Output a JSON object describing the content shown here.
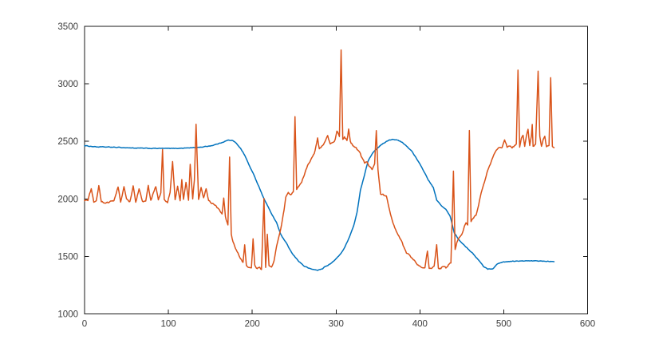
{
  "figure": {
    "background": "#ffffff"
  },
  "chart_data": {
    "type": "line",
    "title": "",
    "xlabel": "",
    "ylabel": "",
    "xlim": [
      0,
      600
    ],
    "ylim": [
      1000,
      3500
    ],
    "x_ticks": [
      "0",
      "100",
      "200",
      "300",
      "400",
      "500",
      "600"
    ],
    "x_tick_values": [
      0,
      100,
      200,
      300,
      400,
      500,
      600
    ],
    "y_ticks": [
      "1000",
      "1500",
      "2000",
      "2500",
      "3000",
      "3500"
    ],
    "y_tick_values": [
      1000,
      1500,
      2000,
      2500,
      3000,
      3500
    ],
    "grid": false,
    "box": true,
    "legend": "none",
    "axis_color": "#1a1a1a",
    "tick_label_color": "#3c3c3c",
    "series": [
      {
        "name": "blue-signal",
        "color": "#0072BD",
        "line_width": 1.5,
        "noise": 3,
        "points": [
          [
            0,
            2462
          ],
          [
            15,
            2452
          ],
          [
            30,
            2450
          ],
          [
            45,
            2446
          ],
          [
            60,
            2442
          ],
          [
            75,
            2439
          ],
          [
            90,
            2439
          ],
          [
            105,
            2438
          ],
          [
            120,
            2442
          ],
          [
            132,
            2446
          ],
          [
            142,
            2452
          ],
          [
            152,
            2464
          ],
          [
            160,
            2480
          ],
          [
            166,
            2497
          ],
          [
            171,
            2510
          ],
          [
            176,
            2508
          ],
          [
            181,
            2485
          ],
          [
            186,
            2440
          ],
          [
            191,
            2380
          ],
          [
            196,
            2298
          ],
          [
            201,
            2222
          ],
          [
            206,
            2140
          ],
          [
            210,
            2072
          ],
          [
            214,
            2000
          ],
          [
            217,
            1962
          ],
          [
            220,
            1915
          ],
          [
            224,
            1855
          ],
          [
            229,
            1795
          ],
          [
            234,
            1690
          ],
          [
            241,
            1610
          ],
          [
            248,
            1520
          ],
          [
            255,
            1462
          ],
          [
            262,
            1415
          ],
          [
            270,
            1390
          ],
          [
            278,
            1380
          ],
          [
            284,
            1392
          ],
          [
            287,
            1415
          ],
          [
            290,
            1420
          ],
          [
            295,
            1445
          ],
          [
            300,
            1478
          ],
          [
            305,
            1520
          ],
          [
            310,
            1572
          ],
          [
            316,
            1672
          ],
          [
            321,
            1766
          ],
          [
            325,
            1880
          ],
          [
            329,
            2075
          ],
          [
            333,
            2180
          ],
          [
            338,
            2325
          ],
          [
            344,
            2405
          ],
          [
            350,
            2448
          ],
          [
            357,
            2485
          ],
          [
            363,
            2512
          ],
          [
            368,
            2519
          ],
          [
            374,
            2508
          ],
          [
            379,
            2490
          ],
          [
            385,
            2452
          ],
          [
            391,
            2410
          ],
          [
            398,
            2325
          ],
          [
            404,
            2250
          ],
          [
            410,
            2165
          ],
          [
            416,
            2098
          ],
          [
            420,
            1990
          ],
          [
            425,
            1945
          ],
          [
            431,
            1908
          ],
          [
            436,
            1850
          ],
          [
            441,
            1705
          ],
          [
            447,
            1640
          ],
          [
            453,
            1598
          ],
          [
            459,
            1555
          ],
          [
            465,
            1510
          ],
          [
            470,
            1468
          ],
          [
            476,
            1412
          ],
          [
            481,
            1390
          ],
          [
            487,
            1393
          ],
          [
            493,
            1438
          ],
          [
            500,
            1452
          ],
          [
            510,
            1458
          ],
          [
            525,
            1460
          ],
          [
            540,
            1461
          ],
          [
            552,
            1458
          ],
          [
            560,
            1457
          ]
        ]
      },
      {
        "name": "orange-signal",
        "color": "#D95319",
        "line_width": 1.5,
        "noise": 8,
        "points": [
          [
            0,
            1978
          ],
          [
            4,
            1990
          ],
          [
            8,
            2088
          ],
          [
            11,
            1975
          ],
          [
            14,
            1985
          ],
          [
            17,
            2115
          ],
          [
            20,
            1972
          ],
          [
            25,
            1968
          ],
          [
            30,
            1972
          ],
          [
            35,
            1985
          ],
          [
            40,
            2105
          ],
          [
            43,
            1975
          ],
          [
            47,
            2102
          ],
          [
            50,
            1992
          ],
          [
            54,
            1975
          ],
          [
            58,
            2115
          ],
          [
            61,
            1972
          ],
          [
            65,
            2085
          ],
          [
            69,
            1978
          ],
          [
            73,
            1985
          ],
          [
            76,
            2108
          ],
          [
            79,
            1982
          ],
          [
            82,
            2050
          ],
          [
            85,
            2108
          ],
          [
            88,
            1992
          ],
          [
            91,
            2048
          ],
          [
            93,
            2425
          ],
          [
            95,
            1995
          ],
          [
            99,
            1972
          ],
          [
            102,
            2052
          ],
          [
            105,
            2330
          ],
          [
            108,
            1992
          ],
          [
            111,
            2108
          ],
          [
            114,
            1982
          ],
          [
            116,
            2165
          ],
          [
            118,
            1992
          ],
          [
            121,
            2140
          ],
          [
            124,
            1988
          ],
          [
            126,
            2300
          ],
          [
            129,
            1992
          ],
          [
            131,
            2165
          ],
          [
            133,
            2650
          ],
          [
            136,
            1992
          ],
          [
            139,
            2098
          ],
          [
            142,
            2008
          ],
          [
            145,
            2092
          ],
          [
            148,
            1985
          ],
          [
            151,
            1968
          ],
          [
            155,
            1950
          ],
          [
            158,
            1928
          ],
          [
            161,
            1902
          ],
          [
            164,
            1868
          ],
          [
            166,
            2010
          ],
          [
            168,
            1852
          ],
          [
            171,
            1768
          ],
          [
            173,
            2360
          ],
          [
            175,
            1700
          ],
          [
            177,
            1625
          ],
          [
            180,
            1565
          ],
          [
            183,
            1522
          ],
          [
            186,
            1478
          ],
          [
            189,
            1448
          ],
          [
            191,
            1600
          ],
          [
            193,
            1428
          ],
          [
            196,
            1408
          ],
          [
            199,
            1398
          ],
          [
            201,
            1650
          ],
          [
            203,
            1420
          ],
          [
            206,
            1395
          ],
          [
            209,
            1412
          ],
          [
            211,
            1388
          ],
          [
            214,
            2005
          ],
          [
            216,
            1402
          ],
          [
            218,
            1692
          ],
          [
            220,
            1415
          ],
          [
            223,
            1398
          ],
          [
            226,
            1470
          ],
          [
            229,
            1580
          ],
          [
            232,
            1680
          ],
          [
            235,
            1782
          ],
          [
            238,
            1902
          ],
          [
            240,
            2010
          ],
          [
            243,
            2052
          ],
          [
            246,
            2038
          ],
          [
            249,
            2060
          ],
          [
            251,
            2720
          ],
          [
            253,
            2085
          ],
          [
            256,
            2112
          ],
          [
            259,
            2150
          ],
          [
            262,
            2208
          ],
          [
            266,
            2285
          ],
          [
            270,
            2338
          ],
          [
            274,
            2388
          ],
          [
            278,
            2528
          ],
          [
            280,
            2432
          ],
          [
            283,
            2452
          ],
          [
            286,
            2485
          ],
          [
            290,
            2548
          ],
          [
            293,
            2470
          ],
          [
            296,
            2482
          ],
          [
            299,
            2518
          ],
          [
            301,
            2582
          ],
          [
            304,
            2545
          ],
          [
            306,
            3295
          ],
          [
            308,
            2512
          ],
          [
            310,
            2535
          ],
          [
            313,
            2508
          ],
          [
            315,
            2605
          ],
          [
            317,
            2498
          ],
          [
            320,
            2462
          ],
          [
            324,
            2445
          ],
          [
            328,
            2405
          ],
          [
            331,
            2352
          ],
          [
            334,
            2310
          ],
          [
            337,
            2318
          ],
          [
            340,
            2282
          ],
          [
            343,
            2252
          ],
          [
            346,
            2312
          ],
          [
            348,
            2598
          ],
          [
            350,
            2248
          ],
          [
            353,
            2045
          ],
          [
            357,
            2032
          ],
          [
            360,
            2028
          ],
          [
            363,
            1932
          ],
          [
            366,
            1845
          ],
          [
            369,
            1775
          ],
          [
            372,
            1718
          ],
          [
            375,
            1672
          ],
          [
            378,
            1628
          ],
          [
            381,
            1575
          ],
          [
            384,
            1532
          ],
          [
            388,
            1505
          ],
          [
            391,
            1490
          ],
          [
            394,
            1455
          ],
          [
            397,
            1432
          ],
          [
            400,
            1418
          ],
          [
            403,
            1402
          ],
          [
            406,
            1398
          ],
          [
            409,
            1548
          ],
          [
            411,
            1402
          ],
          [
            414,
            1392
          ],
          [
            417,
            1410
          ],
          [
            420,
            1598
          ],
          [
            422,
            1405
          ],
          [
            425,
            1392
          ],
          [
            428,
            1415
          ],
          [
            431,
            1398
          ],
          [
            434,
            1428
          ],
          [
            437,
            1442
          ],
          [
            440,
            2238
          ],
          [
            442,
            1558
          ],
          [
            444,
            1618
          ],
          [
            446,
            1648
          ],
          [
            448,
            1672
          ],
          [
            451,
            1705
          ],
          [
            453,
            1758
          ],
          [
            455,
            1798
          ],
          [
            457,
            1782
          ],
          [
            459,
            2598
          ],
          [
            461,
            1808
          ],
          [
            464,
            1838
          ],
          [
            467,
            1858
          ],
          [
            470,
            1945
          ],
          [
            473,
            2045
          ],
          [
            476,
            2125
          ],
          [
            479,
            2205
          ],
          [
            482,
            2268
          ],
          [
            486,
            2342
          ],
          [
            489,
            2392
          ],
          [
            492,
            2432
          ],
          [
            495,
            2448
          ],
          [
            498,
            2452
          ],
          [
            501,
            2518
          ],
          [
            504,
            2452
          ],
          [
            507,
            2465
          ],
          [
            510,
            2448
          ],
          [
            513,
            2462
          ],
          [
            515,
            2475
          ],
          [
            517,
            3118
          ],
          [
            519,
            2448
          ],
          [
            521,
            2525
          ],
          [
            523,
            2548
          ],
          [
            525,
            2458
          ],
          [
            527,
            2552
          ],
          [
            529,
            2602
          ],
          [
            531,
            2458
          ],
          [
            533,
            2545
          ],
          [
            534,
            2640
          ],
          [
            535,
            2450
          ],
          [
            538,
            2470
          ],
          [
            541,
            3118
          ],
          [
            543,
            2548
          ],
          [
            545,
            2452
          ],
          [
            547,
            2512
          ],
          [
            549,
            2545
          ],
          [
            551,
            2448
          ],
          [
            554,
            2462
          ],
          [
            556,
            3055
          ],
          [
            558,
            2458
          ],
          [
            560,
            2452
          ]
        ]
      }
    ]
  }
}
